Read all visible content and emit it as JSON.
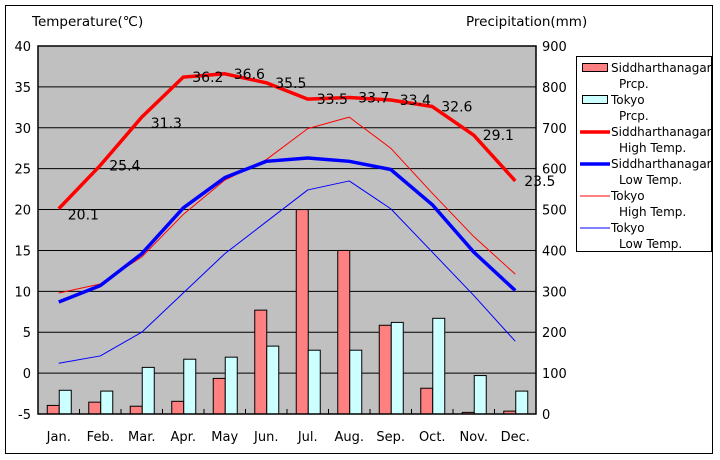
{
  "chart_data": {
    "type": "bar+line",
    "title": "",
    "left_axis_title": "Temperature(℃)",
    "right_axis_title": "Precipitation(mm)",
    "categories": [
      "Jan.",
      "Feb.",
      "Mar.",
      "Apr.",
      "May",
      "Jun.",
      "Jul.",
      "Aug.",
      "Sep.",
      "Oct.",
      "Nov.",
      "Dec."
    ],
    "left_axis": {
      "min": -5,
      "max": 40,
      "step": 5,
      "ticks": [
        "40",
        "35",
        "30",
        "25",
        "20",
        "15",
        "10",
        "5",
        "0",
        "-5"
      ]
    },
    "right_axis": {
      "min": 0,
      "max": 900,
      "step": 100,
      "ticks": [
        "900",
        "800",
        "700",
        "600",
        "500",
        "400",
        "300",
        "200",
        "100",
        "0"
      ]
    },
    "grid": true,
    "legend_position": "right",
    "bar_series": [
      {
        "name": "Siddharthanagar Prcp.",
        "legend_lines": [
          "Siddharthanagar",
          "Prcp."
        ],
        "color": "#ff8080",
        "axis": "right",
        "values": [
          21,
          29,
          19,
          31,
          87,
          254,
          500,
          400,
          217,
          63,
          4,
          7
        ]
      },
      {
        "name": "Tokyo Prcp.",
        "legend_lines": [
          "Tokyo",
          "Prcp."
        ],
        "color": "#ccffff",
        "axis": "right",
        "values": [
          58,
          56,
          114,
          134,
          139,
          166,
          156,
          156,
          224,
          234,
          94,
          56
        ]
      }
    ],
    "line_series": [
      {
        "name": "Siddharthanagar High Temp.",
        "legend_lines": [
          "Siddharthanagar",
          "High Temp."
        ],
        "color": "#ff0000",
        "thick": true,
        "axis": "left",
        "labeled": true,
        "values": [
          20.1,
          25.4,
          31.3,
          36.2,
          36.6,
          35.5,
          33.5,
          33.7,
          33.4,
          32.6,
          29.1,
          23.5
        ]
      },
      {
        "name": "Siddharthanagar Low Temp.",
        "legend_lines": [
          "Siddharthanagar",
          "Low Temp."
        ],
        "color": "#0000ff",
        "thick": true,
        "axis": "left",
        "labeled": false,
        "values": [
          8.7,
          10.7,
          14.6,
          20.2,
          23.9,
          25.9,
          26.3,
          25.9,
          24.9,
          20.6,
          14.8,
          10.1
        ]
      },
      {
        "name": "Tokyo High Temp.",
        "legend_lines": [
          "Tokyo",
          "High Temp."
        ],
        "color": "#ff0000",
        "thick": false,
        "axis": "left",
        "labeled": false,
        "values": [
          9.8,
          10.9,
          14.2,
          19.4,
          23.6,
          26.1,
          29.9,
          31.3,
          27.5,
          22.0,
          16.7,
          12.1
        ]
      },
      {
        "name": "Tokyo Low Temp.",
        "legend_lines": [
          "Tokyo",
          "Low Temp."
        ],
        "color": "#0000ff",
        "thick": false,
        "axis": "left",
        "labeled": false,
        "values": [
          1.2,
          2.1,
          5.0,
          9.8,
          14.6,
          18.5,
          22.4,
          23.5,
          20.1,
          14.8,
          9.5,
          3.9
        ]
      }
    ],
    "data_labels": [
      "20.1",
      "25.4",
      "31.3",
      "36.2",
      "36.6",
      "35.5",
      "33.5",
      "33.7",
      "33.4",
      "32.6",
      "29.1",
      "23.5"
    ],
    "colors": {
      "plot_background": "#c0c0c0",
      "gridline": "#000000",
      "frame": "#000000"
    }
  }
}
